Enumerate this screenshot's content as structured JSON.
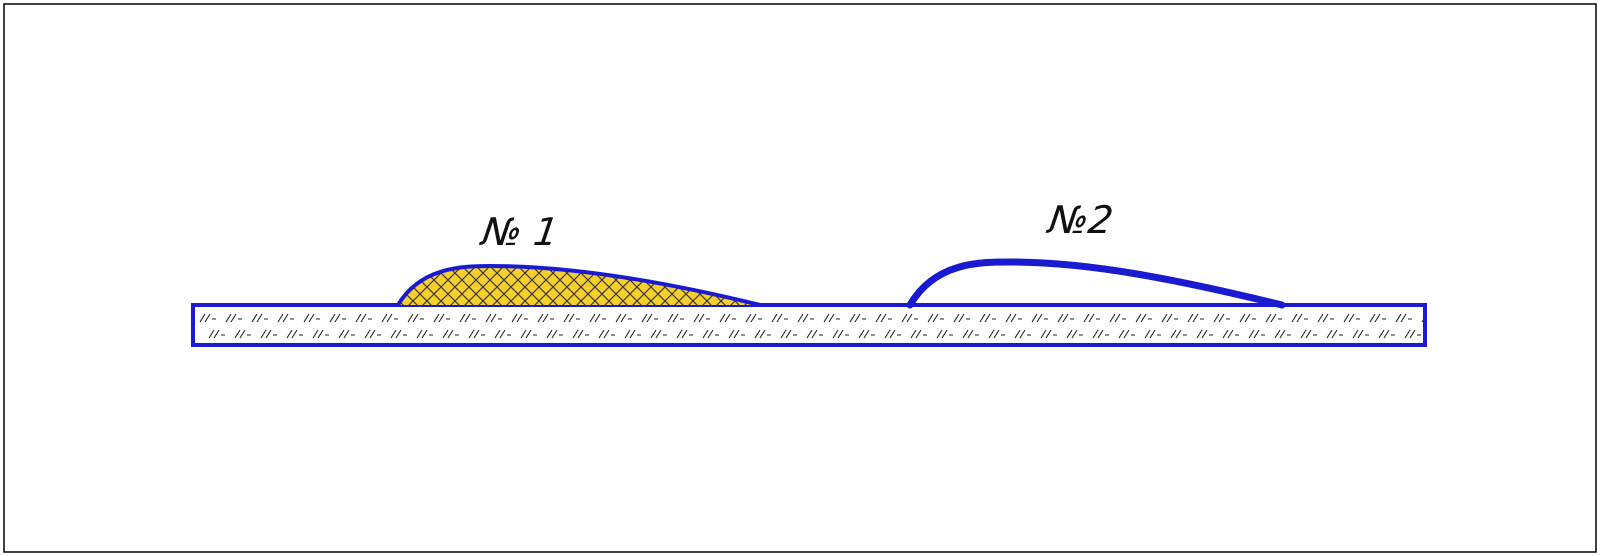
{
  "labels": {
    "shape1": "№ 1",
    "shape2": "№2"
  },
  "colors": {
    "outline": "#1a1ad0",
    "fill_shape1": "#f6cf2a",
    "crosshatch": "#3a3a3a",
    "texture": "#222222",
    "frame": "#000000",
    "background": "#ffffff"
  }
}
